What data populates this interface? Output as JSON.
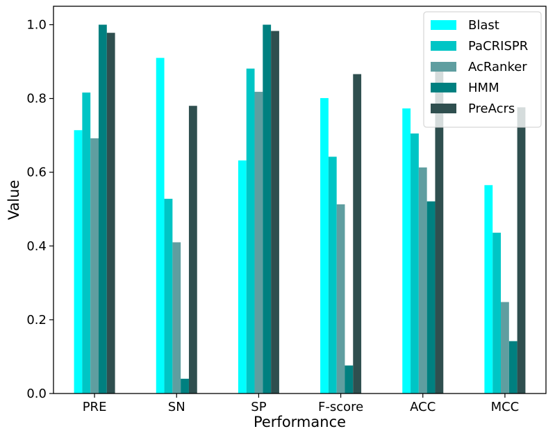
{
  "chart_data": {
    "type": "bar",
    "xlabel": "Performance",
    "ylabel": "Value",
    "ylim": [
      0,
      1.05
    ],
    "yticks": [
      "0.0",
      "0.2",
      "0.4",
      "0.6",
      "0.8",
      "1.0"
    ],
    "categories": [
      "PRE",
      "SN",
      "SP",
      "F-score",
      "ACC",
      "MCC"
    ],
    "legend_position": "top-right",
    "grid": false,
    "series": [
      {
        "name": "Blast",
        "color": "#00FFFF",
        "values": [
          0.714,
          0.91,
          0.632,
          0.801,
          0.773,
          0.565
        ]
      },
      {
        "name": "PaCRISPR",
        "color": "#00C5C5",
        "values": [
          0.816,
          0.528,
          0.881,
          0.642,
          0.705,
          0.436
        ]
      },
      {
        "name": "AcRanker",
        "color": "#5F9EA0",
        "values": [
          0.692,
          0.41,
          0.818,
          0.513,
          0.613,
          0.248
        ]
      },
      {
        "name": "HMM",
        "color": "#008080",
        "values": [
          1.0,
          0.04,
          1.0,
          0.076,
          0.521,
          0.142
        ]
      },
      {
        "name": "PreAcrs",
        "color": "#2F4F4F",
        "values": [
          0.978,
          0.78,
          0.983,
          0.866,
          0.88,
          0.776
        ]
      }
    ]
  }
}
